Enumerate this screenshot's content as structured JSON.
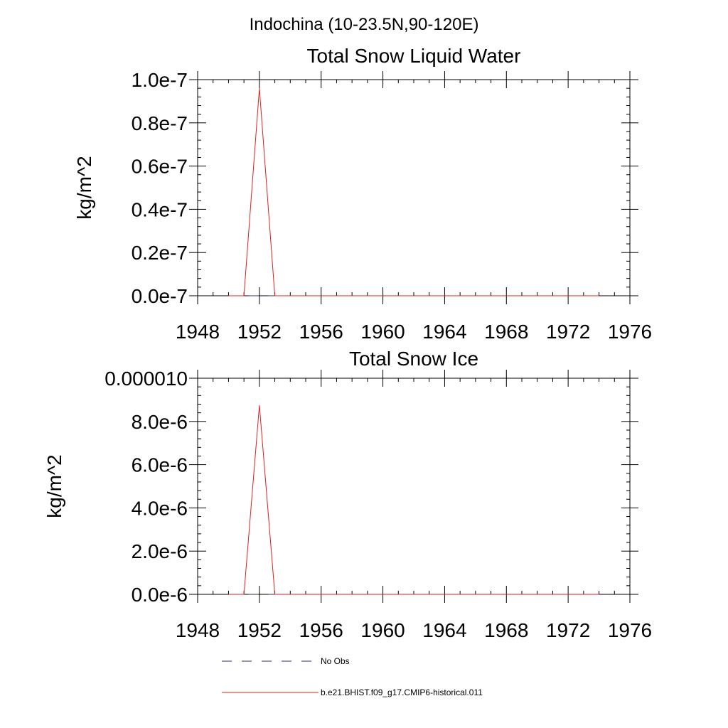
{
  "figure": {
    "suptitle": "Indochina (10-23.5N,90-120E)"
  },
  "legend": {
    "entries": [
      {
        "label": "No Obs",
        "color": "#2b2b6b",
        "dash": "dashed"
      },
      {
        "label": "b.e21.BHIST.f09_g17.CMIP6-historical.011",
        "color": "#e0201b",
        "dash": "solid"
      }
    ]
  },
  "chart_data": [
    {
      "type": "line",
      "title": "Total Snow Liquid Water",
      "xlabel": "",
      "ylabel": "kg/m^2",
      "xlim": [
        1948,
        1976
      ],
      "ylim": [
        0,
        1e-07
      ],
      "xticks": [
        1948,
        1952,
        1956,
        1960,
        1964,
        1968,
        1972,
        1976
      ],
      "xtick_labels": [
        "1948",
        "1952",
        "1956",
        "1960",
        "1964",
        "1968",
        "1972",
        "1976"
      ],
      "yticks": [
        0,
        2e-08,
        4e-08,
        6e-08,
        8e-08,
        1e-07
      ],
      "ytick_labels": [
        "0.0e-7",
        "0.2e-7",
        "0.4e-7",
        "0.6e-7",
        "0.8e-7",
        "1.0e-7"
      ],
      "series": [
        {
          "name": "No Obs",
          "color": "#2b2b6b",
          "x": [
            1950,
            1974
          ],
          "y": [
            0,
            0
          ]
        },
        {
          "name": "b.e21.BHIST.f09_g17.CMIP6-historical.011",
          "color": "#e0201b",
          "x": [
            1950,
            1951,
            1952,
            1953,
            1954,
            1955,
            1956,
            1957,
            1958,
            1959,
            1960,
            1961,
            1962,
            1963,
            1964,
            1965,
            1966,
            1967,
            1968,
            1969,
            1970,
            1971,
            1972,
            1973,
            1974
          ],
          "y": [
            0,
            0,
            9.6e-08,
            0,
            0,
            0,
            0,
            0,
            0,
            0,
            0,
            0,
            0,
            0,
            0,
            0,
            0,
            0,
            0,
            0,
            0,
            0,
            0,
            0,
            0
          ]
        }
      ]
    },
    {
      "type": "line",
      "title": "Total Snow Ice",
      "xlabel": "",
      "ylabel": "kg/m^2",
      "xlim": [
        1948,
        1976
      ],
      "ylim": [
        0,
        1e-05
      ],
      "xticks": [
        1948,
        1952,
        1956,
        1960,
        1964,
        1968,
        1972,
        1976
      ],
      "xtick_labels": [
        "1948",
        "1952",
        "1956",
        "1960",
        "1964",
        "1968",
        "1972",
        "1976"
      ],
      "yticks": [
        0,
        2e-06,
        4e-06,
        6e-06,
        8e-06,
        1e-05
      ],
      "ytick_labels": [
        "0.0e-6",
        "2.0e-6",
        "4.0e-6",
        "6.0e-6",
        "8.0e-6",
        "0.000010"
      ],
      "series": [
        {
          "name": "No Obs",
          "color": "#2b2b6b",
          "x": [
            1950,
            1974
          ],
          "y": [
            0,
            0
          ]
        },
        {
          "name": "b.e21.BHIST.f09_g17.CMIP6-historical.011",
          "color": "#e0201b",
          "x": [
            1950,
            1951,
            1952,
            1953,
            1954,
            1955,
            1956,
            1957,
            1958,
            1959,
            1960,
            1961,
            1962,
            1963,
            1964,
            1965,
            1966,
            1967,
            1968,
            1969,
            1970,
            1971,
            1972,
            1973,
            1974
          ],
          "y": [
            0,
            0,
            8.75e-06,
            0,
            0,
            0,
            0,
            0,
            0,
            0,
            0,
            0,
            0,
            0,
            0,
            0,
            0,
            0,
            0,
            0,
            0,
            0,
            0,
            0,
            0
          ]
        }
      ]
    }
  ]
}
